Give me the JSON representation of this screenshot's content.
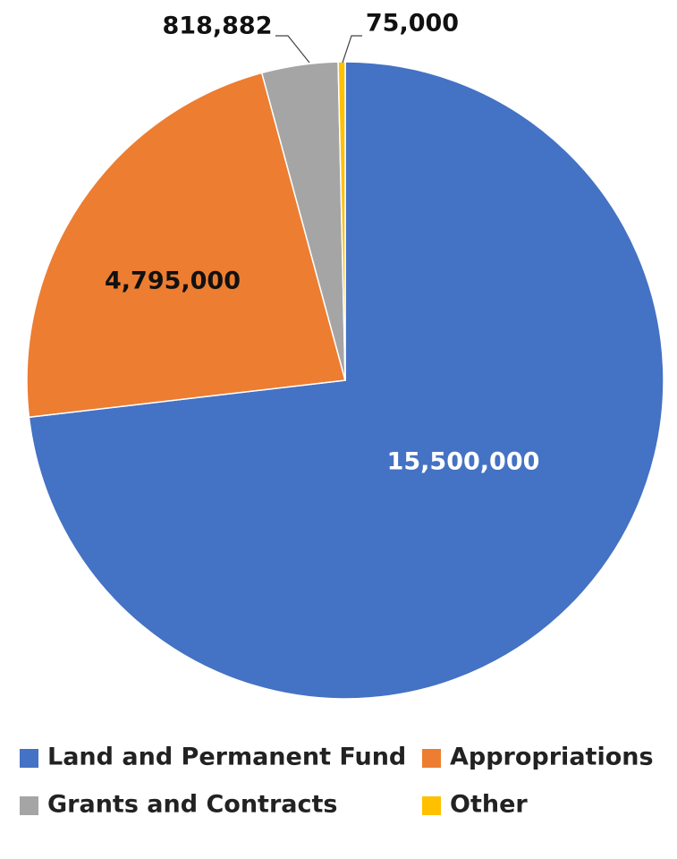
{
  "chart_data": {
    "type": "pie",
    "title": "",
    "start_angle_deg": 0,
    "direction": "clockwise",
    "slices": [
      {
        "name": "Land and Permanent Fund",
        "value": 15500000,
        "label": "15,500,000",
        "color": "#4472C4",
        "label_color": "#FFFFFF"
      },
      {
        "name": "Appropriations",
        "value": 4795000,
        "label": "4,795,000",
        "color": "#ED7D31",
        "label_color": "#111111"
      },
      {
        "name": "Grants and Contracts",
        "value": 818882,
        "label": "818,882",
        "color": "#A5A5A5",
        "label_color": "#111111"
      },
      {
        "name": "Other",
        "value": 75000,
        "label": "75,000",
        "color": "#FFC000",
        "label_color": "#111111"
      }
    ],
    "legend": {
      "position": "bottom",
      "entries": [
        "Land and Permanent Fund",
        "Appropriations",
        "Grants and Contracts",
        "Other"
      ]
    }
  }
}
